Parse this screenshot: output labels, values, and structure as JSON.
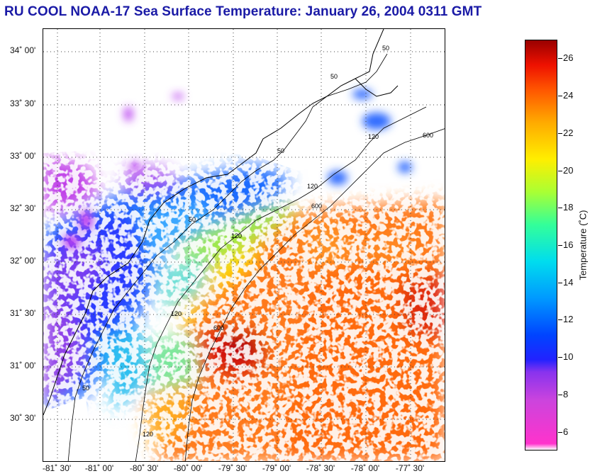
{
  "title": "RU COOL  NOAA-17  Sea Surface Temperature:  January 26, 2004 0311 GMT",
  "map": {
    "lat_labels": [
      "34˚ 00'",
      "33˚ 30'",
      "33˚ 00'",
      "32˚ 30'",
      "32˚ 00'",
      "31˚ 30'",
      "31˚ 00'",
      "30˚ 30'"
    ],
    "lon_labels": [
      "-81˚ 30'",
      "-81˚ 00'",
      "-80˚ 30'",
      "-80˚ 00'",
      "-79˚ 30'",
      "-79˚ 00'",
      "-78˚ 30'",
      "-78˚ 00'",
      "-77˚ 30'"
    ],
    "isobath_labels": [
      "50",
      "50",
      "50",
      "50",
      "120",
      "120",
      "120",
      "120",
      "600",
      "600",
      "600",
      "120",
      "50"
    ],
    "land_color": "#ffffff",
    "coast_color": "#000000"
  },
  "colorbar": {
    "title": "Temperature (˚C)",
    "ticks": [
      "26",
      "24",
      "22",
      "20",
      "18",
      "16",
      "14",
      "12",
      "10",
      "8",
      "6"
    ],
    "min": 5,
    "max": 27
  }
}
